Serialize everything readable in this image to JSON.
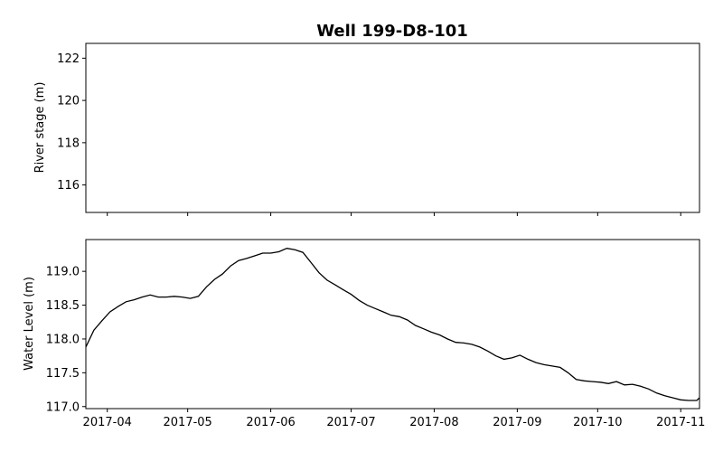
{
  "title": "Well 199-D8-101",
  "chart_data": [
    {
      "type": "line",
      "panel": "top",
      "title": "Well 199-D8-101",
      "ylabel": "River stage (m)",
      "xlabel": "",
      "ylim": [
        114.7,
        122.7
      ],
      "yticks": [
        116,
        118,
        120,
        122
      ],
      "yticklabels": [
        "116",
        "118",
        "120",
        "122"
      ],
      "grid": false,
      "series": []
    },
    {
      "type": "line",
      "panel": "bottom",
      "ylabel": "Water Level (m)",
      "xlabel": "",
      "ylim": [
        116.97,
        119.47
      ],
      "yticks": [
        117.0,
        117.5,
        118.0,
        118.5,
        119.0
      ],
      "yticklabels": [
        "117.0",
        "117.5",
        "118.0",
        "118.5",
        "119.0"
      ],
      "xlim": [
        "2017-03-24",
        "2017-11-08"
      ],
      "xticks": [
        "2017-04-01",
        "2017-05-01",
        "2017-06-01",
        "2017-07-01",
        "2017-08-01",
        "2017-09-01",
        "2017-10-01",
        "2017-11-01"
      ],
      "xticklabels": [
        "2017-04",
        "2017-05",
        "2017-06",
        "2017-07",
        "2017-08",
        "2017-09",
        "2017-10",
        "2017-11"
      ],
      "grid": false,
      "line_color": "#000000",
      "x": [
        "2017-03-24",
        "2017-03-27",
        "2017-03-30",
        "2017-04-02",
        "2017-04-05",
        "2017-04-08",
        "2017-04-11",
        "2017-04-14",
        "2017-04-17",
        "2017-04-20",
        "2017-04-23",
        "2017-04-26",
        "2017-04-29",
        "2017-05-02",
        "2017-05-05",
        "2017-05-08",
        "2017-05-11",
        "2017-05-14",
        "2017-05-17",
        "2017-05-20",
        "2017-05-23",
        "2017-05-26",
        "2017-05-29",
        "2017-06-01",
        "2017-06-04",
        "2017-06-07",
        "2017-06-10",
        "2017-06-13",
        "2017-06-16",
        "2017-06-19",
        "2017-06-22",
        "2017-06-25",
        "2017-06-28",
        "2017-07-01",
        "2017-07-04",
        "2017-07-07",
        "2017-07-10",
        "2017-07-13",
        "2017-07-16",
        "2017-07-19",
        "2017-07-22",
        "2017-07-25",
        "2017-07-28",
        "2017-07-31",
        "2017-08-03",
        "2017-08-06",
        "2017-08-09",
        "2017-08-12",
        "2017-08-15",
        "2017-08-18",
        "2017-08-21",
        "2017-08-24",
        "2017-08-27",
        "2017-08-30",
        "2017-09-02",
        "2017-09-05",
        "2017-09-08",
        "2017-09-11",
        "2017-09-14",
        "2017-09-17",
        "2017-09-20",
        "2017-09-23",
        "2017-09-26",
        "2017-09-29",
        "2017-10-02",
        "2017-10-05",
        "2017-10-08",
        "2017-10-11",
        "2017-10-14",
        "2017-10-17",
        "2017-10-20",
        "2017-10-23",
        "2017-10-26",
        "2017-10-29",
        "2017-11-01",
        "2017-11-04",
        "2017-11-07",
        "2017-11-08"
      ],
      "values": [
        117.88,
        118.13,
        118.27,
        118.4,
        118.48,
        118.55,
        118.58,
        118.62,
        118.65,
        118.62,
        118.62,
        118.63,
        118.62,
        118.6,
        118.63,
        118.77,
        118.88,
        118.96,
        119.08,
        119.16,
        119.19,
        119.23,
        119.27,
        119.27,
        119.29,
        119.34,
        119.32,
        119.28,
        119.13,
        118.98,
        118.87,
        118.8,
        118.73,
        118.66,
        118.57,
        118.5,
        118.45,
        118.4,
        118.35,
        118.33,
        118.28,
        118.2,
        118.15,
        118.1,
        118.06,
        118.0,
        117.95,
        117.94,
        117.92,
        117.88,
        117.82,
        117.75,
        117.7,
        117.72,
        117.76,
        117.7,
        117.65,
        117.62,
        117.6,
        117.58,
        117.5,
        117.4,
        117.38,
        117.37,
        117.36,
        117.34,
        117.37,
        117.32,
        117.33,
        117.3,
        117.26,
        117.2,
        117.16,
        117.13,
        117.1,
        117.09,
        117.09,
        117.13
      ]
    }
  ]
}
